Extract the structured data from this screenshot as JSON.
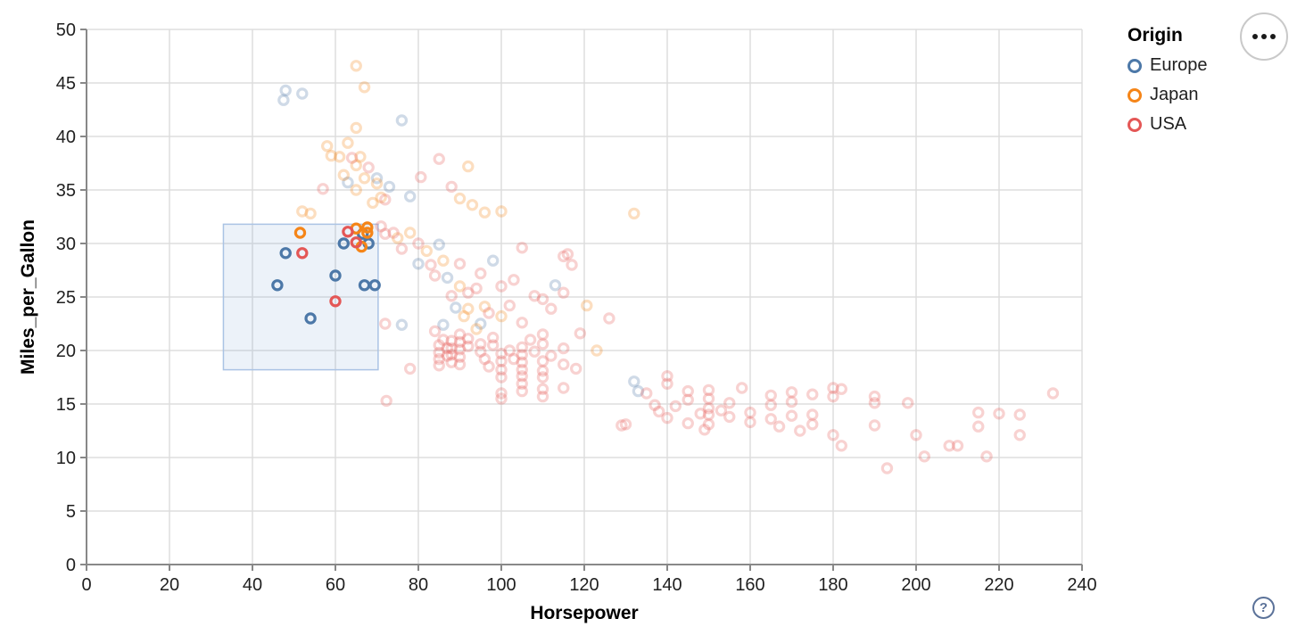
{
  "legend": {
    "title": "Origin",
    "items": [
      {
        "label": "Europe",
        "color": "#4c78a8"
      },
      {
        "label": "Japan",
        "color": "#f58518"
      },
      {
        "label": "USA",
        "color": "#e45756"
      }
    ]
  },
  "icons": {
    "more_options_glyph": "•••",
    "help_glyph": "?"
  },
  "chart_data": {
    "type": "scatter",
    "title": "",
    "xlabel": "Horsepower",
    "ylabel": "Miles_per_Gallon",
    "xlim": [
      0,
      240
    ],
    "ylim": [
      0,
      50
    ],
    "xticks": [
      0,
      20,
      40,
      60,
      80,
      100,
      120,
      140,
      160,
      180,
      200,
      220,
      240
    ],
    "yticks": [
      0,
      5,
      10,
      15,
      20,
      25,
      30,
      35,
      40,
      45,
      50
    ],
    "grid": true,
    "legend_position": "top-right",
    "point_shape": "open-circle",
    "unselected_opacity": 0.27,
    "brush_selection": {
      "x": [
        33,
        70.3
      ],
      "y": [
        18.2,
        31.8
      ],
      "fill": "#7da7d9",
      "fill_opacity": 0.15,
      "stroke": "#aac3e4"
    },
    "series": [
      {
        "name": "Europe",
        "color": "#4c78a8",
        "points": [
          [
            46,
            26.1
          ],
          [
            48,
            29.1
          ],
          [
            54,
            23
          ],
          [
            60,
            27
          ],
          [
            62,
            30
          ],
          [
            66.6,
            30.9
          ],
          [
            68,
            30
          ],
          [
            67,
            26.1
          ],
          [
            69.5,
            26.1
          ],
          [
            48,
            44.3
          ],
          [
            52,
            44
          ],
          [
            47.5,
            43.4
          ],
          [
            76,
            41.5
          ],
          [
            63,
            35.7
          ],
          [
            70,
            36.1
          ],
          [
            73,
            35.3
          ],
          [
            78,
            34.4
          ],
          [
            80,
            28.1
          ],
          [
            85,
            29.9
          ],
          [
            87,
            26.8
          ],
          [
            89,
            24
          ],
          [
            95,
            22.5
          ],
          [
            98,
            28.4
          ],
          [
            113,
            26.1
          ],
          [
            86,
            22.4
          ],
          [
            76,
            22.4
          ],
          [
            132,
            17.1
          ],
          [
            133,
            16.2
          ]
        ]
      },
      {
        "name": "Japan",
        "color": "#f58518",
        "points": [
          [
            51.5,
            31
          ],
          [
            65,
            31.4
          ],
          [
            66.3,
            29.7
          ],
          [
            67.7,
            31.5
          ],
          [
            67.7,
            31
          ],
          [
            65,
            46.6
          ],
          [
            67,
            44.6
          ],
          [
            65,
            40.8
          ],
          [
            58,
            39.1
          ],
          [
            59,
            38.2
          ],
          [
            61,
            38.1
          ],
          [
            62,
            36.4
          ],
          [
            63,
            39.4
          ],
          [
            65,
            37.3
          ],
          [
            66,
            38.1
          ],
          [
            67,
            36.1
          ],
          [
            65,
            35
          ],
          [
            70,
            35.6
          ],
          [
            71,
            34.3
          ],
          [
            69,
            33.8
          ],
          [
            52,
            33
          ],
          [
            54,
            32.8
          ],
          [
            92,
            37.2
          ],
          [
            93,
            33.6
          ],
          [
            96,
            32.9
          ],
          [
            90,
            34.2
          ],
          [
            100,
            33
          ],
          [
            75,
            30.5
          ],
          [
            78,
            31
          ],
          [
            82,
            29.3
          ],
          [
            86,
            28.4
          ],
          [
            90,
            26
          ],
          [
            92,
            23.9
          ],
          [
            96,
            24.1
          ],
          [
            100,
            23.2
          ],
          [
            120.6,
            24.2
          ],
          [
            91,
            23.2
          ],
          [
            94,
            22
          ],
          [
            123,
            20
          ],
          [
            132,
            32.8
          ]
        ]
      },
      {
        "name": "USA",
        "color": "#e45756",
        "points": [
          [
            52,
            29.1
          ],
          [
            60,
            24.6
          ],
          [
            63,
            31.1
          ],
          [
            65,
            30.1
          ],
          [
            64,
            38
          ],
          [
            57,
            35.1
          ],
          [
            68,
            37.1
          ],
          [
            72,
            34.1
          ],
          [
            80.6,
            36.2
          ],
          [
            85,
            37.9
          ],
          [
            88,
            35.3
          ],
          [
            71,
            31.6
          ],
          [
            72,
            30.9
          ],
          [
            74,
            31
          ],
          [
            76,
            29.5
          ],
          [
            80,
            30
          ],
          [
            83,
            28
          ],
          [
            84,
            27
          ],
          [
            88,
            25.1
          ],
          [
            90,
            28.1
          ],
          [
            92,
            25.4
          ],
          [
            94,
            25.8
          ],
          [
            95,
            27.2
          ],
          [
            97,
            23.5
          ],
          [
            100,
            26
          ],
          [
            102,
            24.2
          ],
          [
            103,
            26.6
          ],
          [
            105,
            22.6
          ],
          [
            108,
            25.1
          ],
          [
            110,
            24.8
          ],
          [
            110,
            21.5
          ],
          [
            112,
            23.9
          ],
          [
            115,
            25.4
          ],
          [
            115,
            28.8
          ],
          [
            117,
            28
          ],
          [
            126,
            23
          ],
          [
            105,
            29.6
          ],
          [
            116,
            29
          ],
          [
            84,
            21.8
          ],
          [
            72,
            22.5
          ],
          [
            119,
            21.6
          ],
          [
            118,
            18.3
          ],
          [
            78,
            18.3
          ],
          [
            72.3,
            15.3
          ],
          [
            85,
            20.5
          ],
          [
            85,
            19.8
          ],
          [
            85,
            19.2
          ],
          [
            85,
            18.6
          ],
          [
            86,
            21
          ],
          [
            87,
            20.2
          ],
          [
            87,
            19.5
          ],
          [
            88,
            20.9
          ],
          [
            88,
            20.2
          ],
          [
            88,
            19.6
          ],
          [
            88,
            18.9
          ],
          [
            90,
            21.5
          ],
          [
            90,
            20.8
          ],
          [
            90,
            20.1
          ],
          [
            90,
            19.4
          ],
          [
            90,
            18.7
          ],
          [
            92,
            21.1
          ],
          [
            92,
            20.4
          ],
          [
            95,
            20.6
          ],
          [
            95,
            19.9
          ],
          [
            96,
            19.2
          ],
          [
            97,
            18.5
          ],
          [
            98,
            21.2
          ],
          [
            98,
            20.5
          ],
          [
            100,
            19.7
          ],
          [
            100,
            19
          ],
          [
            100,
            18.2
          ],
          [
            100,
            17.5
          ],
          [
            100,
            16
          ],
          [
            100,
            15.5
          ],
          [
            102,
            20
          ],
          [
            103,
            19.2
          ],
          [
            105,
            20.3
          ],
          [
            105,
            19.6
          ],
          [
            105,
            18.9
          ],
          [
            105,
            18.2
          ],
          [
            105,
            17.6
          ],
          [
            105,
            16.9
          ],
          [
            105,
            16.2
          ],
          [
            107,
            21
          ],
          [
            108,
            19.9
          ],
          [
            110,
            20.6
          ],
          [
            110,
            19
          ],
          [
            110,
            18.1
          ],
          [
            110,
            17.5
          ],
          [
            110,
            16.4
          ],
          [
            110,
            15.7
          ],
          [
            112,
            19.5
          ],
          [
            115,
            20.2
          ],
          [
            115,
            18.7
          ],
          [
            115,
            16.5
          ],
          [
            129,
            13
          ],
          [
            130,
            13.1
          ],
          [
            135,
            16
          ],
          [
            137,
            14.9
          ],
          [
            138,
            14.3
          ],
          [
            140,
            17.6
          ],
          [
            140,
            16.9
          ],
          [
            140,
            13.7
          ],
          [
            142,
            14.8
          ],
          [
            145,
            16.2
          ],
          [
            145,
            15.4
          ],
          [
            145,
            13.2
          ],
          [
            148,
            14.1
          ],
          [
            149,
            12.6
          ],
          [
            150,
            16.3
          ],
          [
            150,
            15.5
          ],
          [
            150,
            14.6
          ],
          [
            150,
            14
          ],
          [
            150,
            13.1
          ],
          [
            153,
            14.4
          ],
          [
            155,
            15.1
          ],
          [
            155,
            13.8
          ],
          [
            158,
            16.5
          ],
          [
            160,
            14.2
          ],
          [
            160,
            13.3
          ],
          [
            165,
            15.8
          ],
          [
            165,
            14.9
          ],
          [
            165,
            13.6
          ],
          [
            167,
            12.9
          ],
          [
            170,
            16.1
          ],
          [
            170,
            15.2
          ],
          [
            170,
            13.9
          ],
          [
            172,
            12.5
          ],
          [
            175,
            15.9
          ],
          [
            175,
            14
          ],
          [
            175,
            13.1
          ],
          [
            180,
            16.5
          ],
          [
            180,
            15.7
          ],
          [
            180,
            12.1
          ],
          [
            182,
            16.4
          ],
          [
            182,
            11.1
          ],
          [
            190,
            15.7
          ],
          [
            190,
            15.1
          ],
          [
            190,
            13
          ],
          [
            193,
            9
          ],
          [
            198,
            15.1
          ],
          [
            200,
            12.1
          ],
          [
            202,
            10.1
          ],
          [
            208,
            11.1
          ],
          [
            210,
            11.1
          ],
          [
            215,
            14.2
          ],
          [
            215,
            12.9
          ],
          [
            217,
            10.1
          ],
          [
            220,
            14.1
          ],
          [
            225,
            14
          ],
          [
            225,
            12.1
          ],
          [
            233,
            16
          ]
        ]
      }
    ]
  }
}
